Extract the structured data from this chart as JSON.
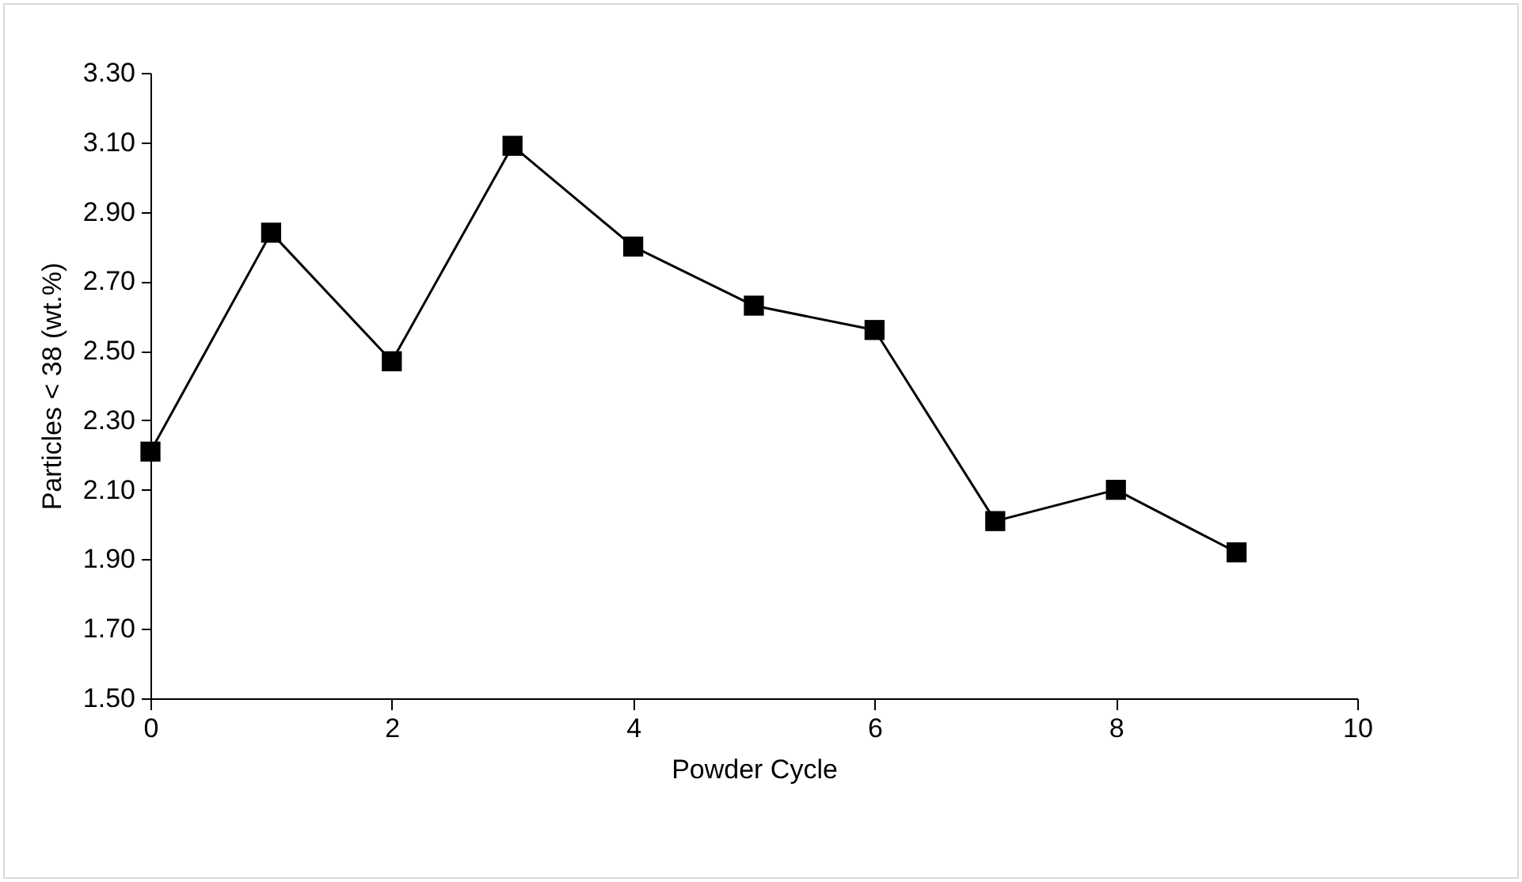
{
  "chart_data": {
    "type": "line",
    "xlabel": "Powder Cycle",
    "ylabel": "Particles < 38 (wt.%)",
    "x": [
      0,
      1,
      2,
      3,
      4,
      5,
      6,
      7,
      8,
      9
    ],
    "series": [
      {
        "color": "#000000",
        "values": [
          2.21,
          2.84,
          2.47,
          3.09,
          2.8,
          2.63,
          2.56,
          2.01,
          2.1,
          1.92
        ]
      }
    ],
    "xlim": [
      0,
      10
    ],
    "xticks": [
      0,
      2,
      4,
      6,
      8,
      10
    ],
    "ylim": [
      1.5,
      3.3
    ],
    "yticks": [
      {
        "value": 1.5,
        "label": "1.50"
      },
      {
        "value": 1.7,
        "label": "1.70"
      },
      {
        "value": 1.9,
        "label": "1.90"
      },
      {
        "value": 2.1,
        "label": "2.10"
      },
      {
        "value": 2.3,
        "label": "2.30"
      },
      {
        "value": 2.5,
        "label": "2.50"
      },
      {
        "value": 2.7,
        "label": "2.70"
      },
      {
        "value": 2.9,
        "label": "2.90"
      },
      {
        "value": 3.1,
        "label": "3.10"
      },
      {
        "value": 3.3,
        "label": "3.30"
      }
    ],
    "grid": false,
    "marker": "square",
    "line_style": "solid"
  }
}
